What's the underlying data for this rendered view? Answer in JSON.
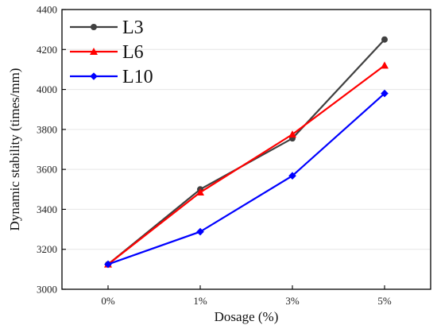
{
  "chart_data": {
    "type": "line",
    "categories": [
      "0%",
      "1%",
      "3%",
      "5%"
    ],
    "series": [
      {
        "name": "L3",
        "values": [
          3125,
          3500,
          3755,
          4250
        ],
        "color": "#404040",
        "marker": "circle"
      },
      {
        "name": "L6",
        "values": [
          3125,
          3485,
          3775,
          4120
        ],
        "color": "#ff0000",
        "marker": "triangle"
      },
      {
        "name": "L10",
        "values": [
          3125,
          3288,
          3568,
          3980
        ],
        "color": "#0000ff",
        "marker": "diamond"
      }
    ],
    "xlabel": "Dosage (%)",
    "ylabel": "Dynamic stability (times/mm)",
    "ylim": [
      3000,
      4400
    ],
    "yticks": [
      3000,
      3200,
      3400,
      3600,
      3800,
      4000,
      4200,
      4400
    ],
    "grid": true,
    "legend": "top-left"
  }
}
